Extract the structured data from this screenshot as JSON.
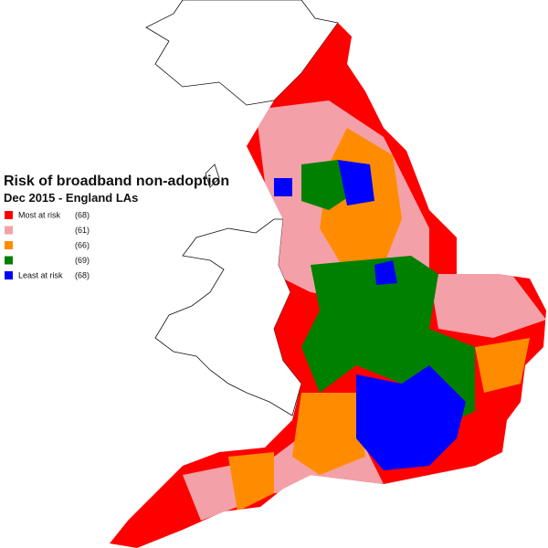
{
  "title": "Risk of broadband non-adoption",
  "subtitle": "Dec 2015 - England LAs",
  "legend": [
    {
      "label": "Most at risk",
      "count": "(68)",
      "color": "#ff0000"
    },
    {
      "count": "(61)",
      "color": "#f4a0a8"
    },
    {
      "count": "(66)",
      "color": "#ff8c00"
    },
    {
      "count": "(69)",
      "color": "#008000"
    },
    {
      "label": "Least at risk",
      "count": "(68)",
      "color": "#0000ff"
    }
  ]
}
